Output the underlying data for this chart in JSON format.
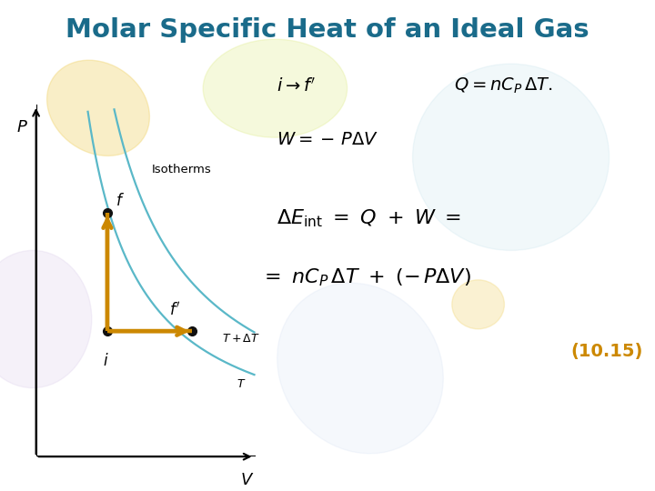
{
  "title": "Molar Specific Heat of an Ideal Gas",
  "title_color": "#1a6b8a",
  "title_fontsize": 21,
  "bg_color": "#ffffff",
  "graph": {
    "xlim": [
      0,
      10
    ],
    "ylim": [
      0,
      10
    ],
    "isotherm_color": "#5ab8c8",
    "arrow_color": "#cc8800",
    "point_color": "#111111",
    "point_size": 7,
    "f_point": [
      3.2,
      6.8
    ],
    "i_point": [
      3.2,
      3.5
    ],
    "fprime_point": [
      7.0,
      3.5
    ],
    "isotherm1_k": 22.4,
    "isotherm2_k": 34.0,
    "label_P": "$P$",
    "label_V": "$V$",
    "label_f": "$f$",
    "label_i": "$i$",
    "label_fprime": "$f'$",
    "label_isotherms": "Isotherms",
    "label_T": "$T$",
    "label_TdT": "$T + \\Delta T$"
  },
  "equations": {
    "eq_number": "(10.15)",
    "eq_number_color": "#cc8800"
  },
  "decorations": {
    "watermark_colors": [
      "#f0d060",
      "#d8e870",
      "#b8dce8",
      "#d8c8e8",
      "#c8d8f0"
    ],
    "walpha": 0.35
  }
}
